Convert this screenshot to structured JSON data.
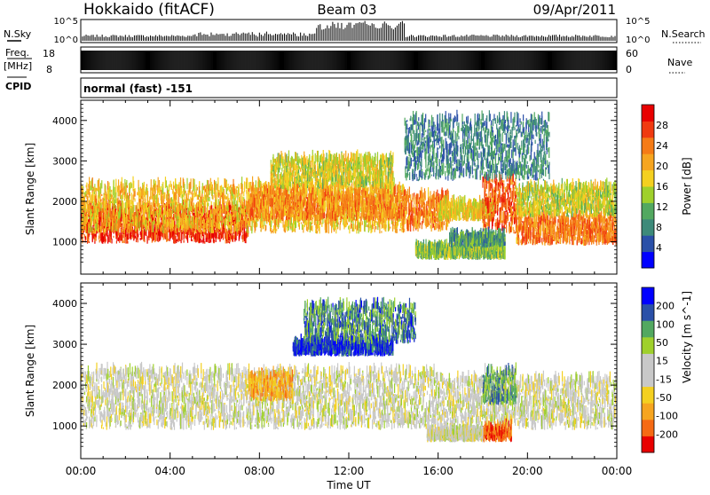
{
  "header": {
    "site": "Hokkaido (fitACF)",
    "beam": "Beam 03",
    "date": "09/Apr/2011"
  },
  "noise_panel": {
    "left_label": "N.Sky",
    "right_label": "N.Search",
    "ticks": [
      "10^5",
      "10^0"
    ]
  },
  "freq_panel": {
    "label_line1": "Freq.",
    "label_line2": "[MHz]",
    "ticks_left": [
      "18",
      "8"
    ],
    "ticks_right": [
      "60",
      "0"
    ],
    "right_label": "Nave"
  },
  "cpid_panel": {
    "label": "CPID",
    "value": "normal (fast) -151"
  },
  "chart_data": [
    {
      "type": "heatmap",
      "title": "",
      "xlabel": "Time UT",
      "ylabel": "Slant Range [km]",
      "x_ticks": [
        "00:00",
        "04:00",
        "08:00",
        "12:00",
        "16:00",
        "20:00",
        "00:00"
      ],
      "xlim_hours": [
        0,
        24
      ],
      "y_ticks": [
        1000,
        2000,
        3000,
        4000
      ],
      "ylim": [
        200,
        4500
      ],
      "colorbar": {
        "label": "Power [dB]",
        "ticks": [
          "28",
          "24",
          "20",
          "16",
          "12",
          "8",
          "4"
        ],
        "colors": [
          "#0000ff",
          "#2a50a8",
          "#3d8a7a",
          "#52a860",
          "#9fd02c",
          "#f4d020",
          "#f6a520",
          "#f57b16",
          "#f03a10",
          "#e80000"
        ]
      },
      "regions": [
        {
          "t0": 0.0,
          "t1": 7.5,
          "r0": 950,
          "r1": 1800,
          "level": 0.88
        },
        {
          "t0": 0.0,
          "t1": 14.5,
          "r0": 1200,
          "r1": 2350,
          "level": 0.6
        },
        {
          "t0": 7.5,
          "t1": 14.5,
          "r0": 1500,
          "r1": 2200,
          "level": 0.7
        },
        {
          "t0": 8.5,
          "t1": 14.0,
          "r0": 2300,
          "r1": 3000,
          "level": 0.52
        },
        {
          "t0": 14.5,
          "t1": 16.5,
          "r0": 1250,
          "r1": 2100,
          "level": 0.72
        },
        {
          "t0": 16.0,
          "t1": 18.5,
          "r0": 1500,
          "r1": 1900,
          "level": 0.55
        },
        {
          "t0": 18.0,
          "t1": 19.5,
          "r0": 1200,
          "r1": 2500,
          "level": 0.8
        },
        {
          "t0": 19.5,
          "t1": 24.0,
          "r0": 900,
          "r1": 1600,
          "level": 0.74
        },
        {
          "t0": 19.5,
          "t1": 24.0,
          "r0": 1600,
          "r1": 2300,
          "level": 0.5
        },
        {
          "t0": 15.0,
          "t1": 19.0,
          "r0": 550,
          "r1": 800,
          "level": 0.42
        },
        {
          "t0": 16.5,
          "t1": 19.0,
          "r0": 850,
          "r1": 1100,
          "level": 0.3
        },
        {
          "t0": 14.5,
          "t1": 21.0,
          "r0": 2500,
          "r1": 4000,
          "level": 0.25
        }
      ]
    },
    {
      "type": "heatmap",
      "title": "",
      "xlabel": "Time UT",
      "ylabel": "Slant Range [km]",
      "x_ticks": [
        "00:00",
        "04:00",
        "08:00",
        "12:00",
        "16:00",
        "20:00",
        "00:00"
      ],
      "xlim_hours": [
        0,
        24
      ],
      "y_ticks": [
        1000,
        2000,
        3000,
        4000
      ],
      "ylim": [
        200,
        4500
      ],
      "colorbar": {
        "label": "Velocity [m s^-1]",
        "ticks": [
          "200",
          "100",
          "50",
          "15",
          "-15",
          "-50",
          "-100",
          "-200"
        ],
        "colors": [
          "#e80000",
          "#f56a14",
          "#f6a520",
          "#f4d020",
          "#c8c8c8",
          "#c8c8c8",
          "#9fd02c",
          "#52a860",
          "#2a50a8",
          "#0000ff"
        ]
      },
      "regions": [
        {
          "t0": 0.0,
          "t1": 16.0,
          "r0": 900,
          "r1": 2300,
          "level": 0.5
        },
        {
          "t0": 16.0,
          "t1": 24.0,
          "r0": 900,
          "r1": 2100,
          "level": 0.5
        },
        {
          "t0": 9.5,
          "t1": 14.0,
          "r0": 2700,
          "r1": 3000,
          "level": 0.9
        },
        {
          "t0": 7.5,
          "t1": 9.5,
          "r0": 1600,
          "r1": 2200,
          "level": 0.28
        },
        {
          "t0": 18.0,
          "t1": 19.5,
          "r0": 1500,
          "r1": 2300,
          "level": 0.72
        },
        {
          "t0": 18.0,
          "t1": 19.3,
          "r0": 600,
          "r1": 900,
          "level": 0.15
        },
        {
          "t0": 15.5,
          "t1": 18.0,
          "r0": 600,
          "r1": 800,
          "level": 0.5
        },
        {
          "t0": 10.0,
          "t1": 15.0,
          "r0": 3000,
          "r1": 3900,
          "level": 0.78
        }
      ]
    }
  ]
}
